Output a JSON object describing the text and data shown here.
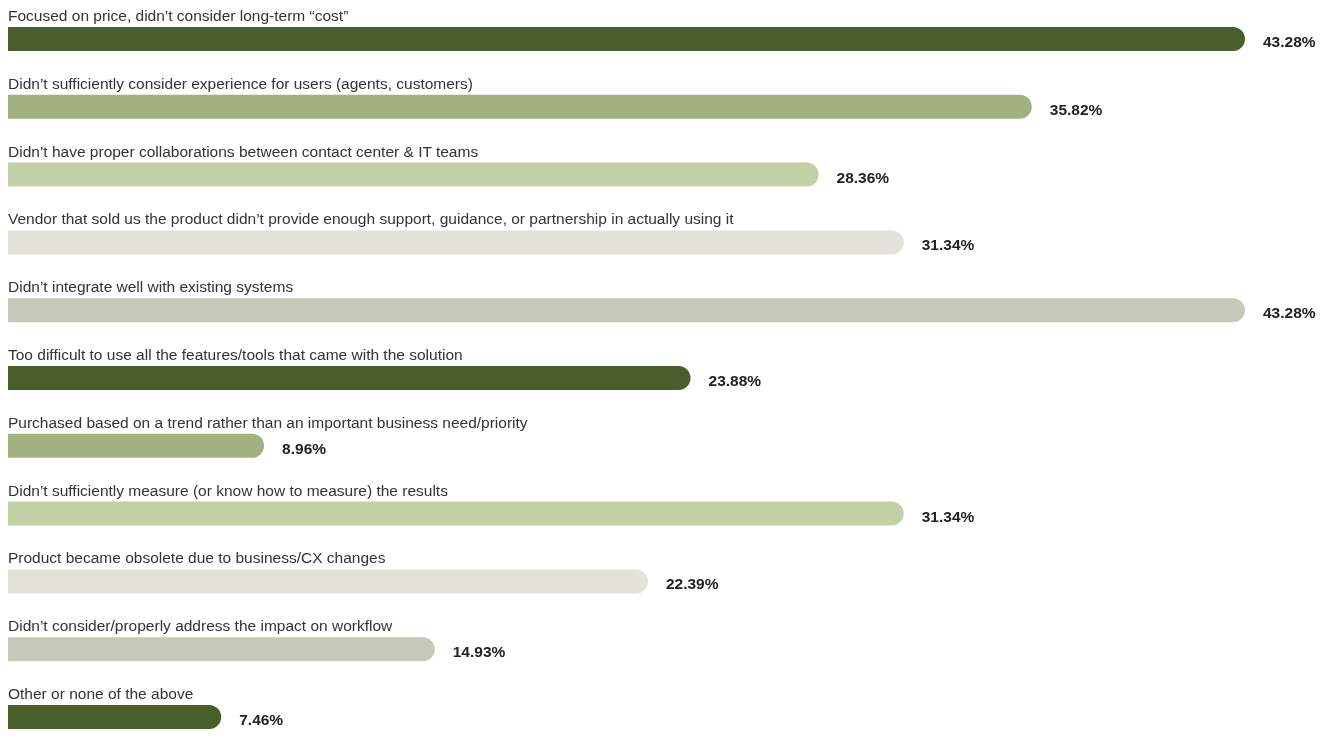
{
  "chart_data": {
    "type": "bar",
    "orientation": "horizontal",
    "categories": [
      "Focused on price, didn’t consider long-term “cost”",
      "Didn’t sufficiently consider experience for users (agents, customers)",
      "Didn’t have proper collaborations between contact center & IT teams",
      "Vendor that sold us the product didn’t provide enough support, guidance, or partnership in actually using it",
      "Didn’t integrate well with existing systems",
      "Too difficult to use all the features/tools that came with the solution",
      "Purchased based on a trend rather than an important business need/priority",
      "Didn’t sufficiently measure (or know how to measure) the results",
      "Product became obsolete due to business/CX changes",
      "Didn’t consider/properly address the impact on workflow",
      "Other or none of the above"
    ],
    "values": [
      43.28,
      35.82,
      28.36,
      31.34,
      43.28,
      23.88,
      8.96,
      31.34,
      22.39,
      14.93,
      7.46
    ],
    "value_labels": [
      "43.28%",
      "35.82%",
      "28.36%",
      "31.34%",
      "43.28%",
      "23.88%",
      "8.96%",
      "31.34%",
      "22.39%",
      "14.93%",
      "7.46%"
    ],
    "colors": [
      "#4a5e2b",
      "#a3b07f",
      "#c3d0a5",
      "#e2e2db",
      "#c6c8b9",
      "#4a5e2b",
      "#a3b07f",
      "#c3d0a5",
      "#e2e2db",
      "#c6c8b9",
      "#4a5e2b"
    ]
  }
}
